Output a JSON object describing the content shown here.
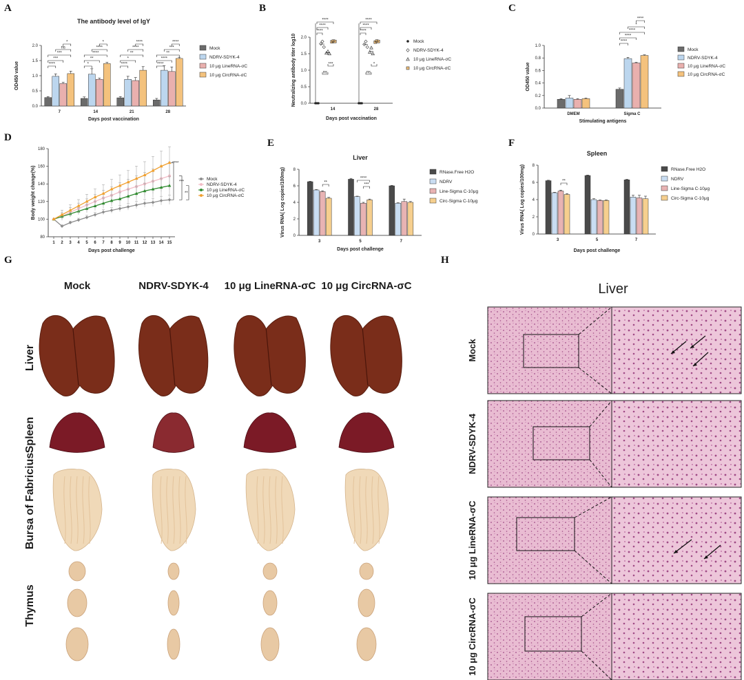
{
  "panel_labels": [
    "A",
    "B",
    "C",
    "D",
    "E",
    "F",
    "G",
    "H"
  ],
  "colors": {
    "mock": "#6b6b6b",
    "ndrv": "#bcd6ee",
    "line": "#e9b0ae",
    "circ": "#f4c27d",
    "d_mock": "#8c8c8c",
    "d_ndrv": "#f2bcc6",
    "d_line": "#2f8a2f",
    "d_circ": "#f0a030",
    "e_h2o": "#4a4a4a",
    "e_ndrv": "#c9ddf2",
    "e_line": "#e8b3b3",
    "e_circ": "#f6cf8e",
    "liver": "#7a2d1a",
    "spleen": "#7b1a26",
    "bursa": "#f0d9b8",
    "thymus": "#e8c9a4",
    "he_bg": "#e9bcd2",
    "he_dot": "#a04a86"
  },
  "chart_data": [
    {
      "id": "A",
      "type": "bar",
      "title": "The antibody level of IgY",
      "xlabel": "Days post vaccination",
      "ylabel": "OD450 value",
      "categories": [
        "7",
        "14",
        "21",
        "28"
      ],
      "ylim": [
        0,
        2.0
      ],
      "yticks": [
        "0.0",
        "0.5",
        "1.0",
        "1.5",
        "2.0"
      ],
      "series": [
        {
          "name": "Mock",
          "values": [
            0.28,
            0.25,
            0.27,
            0.2
          ],
          "err": [
            0.03,
            0.05,
            0.04,
            0.05
          ]
        },
        {
          "name": "NDRV-SDYK-4",
          "values": [
            0.98,
            1.05,
            0.88,
            1.18
          ],
          "err": [
            0.08,
            0.18,
            0.1,
            0.15
          ]
        },
        {
          "name": "10 μg LineRNA-σC",
          "values": [
            0.74,
            0.88,
            0.84,
            1.14
          ],
          "err": [
            0.04,
            0.04,
            0.1,
            0.15
          ]
        },
        {
          "name": "10 μg CircRNA-σC",
          "values": [
            1.07,
            1.4,
            1.18,
            1.57
          ],
          "err": [
            0.08,
            0.04,
            0.12,
            0.04
          ]
        }
      ],
      "significance": [
        "*",
        "ns",
        "***",
        "***",
        "****",
        "*",
        "****",
        "****",
        "**",
        "*",
        "****",
        "****",
        "**",
        "*",
        "****",
        "****",
        "***",
        "**",
        "****",
        "****"
      ]
    },
    {
      "id": "B",
      "type": "scatter",
      "xlabel": "Days post vaccination",
      "ylabel": "Neutralizing antibody titer log10",
      "categories": [
        "14",
        "28"
      ],
      "ylim": [
        0,
        2.0
      ],
      "yticks": [
        "0.0",
        "0.5",
        "1.0",
        "1.5",
        "2.0"
      ],
      "series": [
        {
          "name": "Mock",
          "values": [
            [
              0,
              0,
              0
            ],
            [
              0,
              0,
              0
            ]
          ]
        },
        {
          "name": "NDRV-SDYK-4",
          "values": [
            [
              1.8,
              1.87,
              1.7
            ],
            [
              1.78,
              1.87,
              1.7
            ]
          ]
        },
        {
          "name": "10 μg LineRNA-σC",
          "values": [
            [
              1.52,
              1.57,
              1.5
            ],
            [
              1.55,
              1.68,
              1.5
            ]
          ]
        },
        {
          "name": "10 μg CircRNA-σC",
          "values": [
            [
              1.86,
              1.88,
              1.87
            ],
            [
              1.85,
              1.88,
              1.87
            ]
          ]
        }
      ],
      "significance": [
        "****",
        "****",
        "****",
        "***",
        "ns",
        "****",
        "****",
        "****",
        "*",
        "ns"
      ]
    },
    {
      "id": "C",
      "type": "bar",
      "xlabel": "Stimulating antigens",
      "ylabel": "OD450 value",
      "categories": [
        "DMEM",
        "Sigma C"
      ],
      "ylim": [
        0,
        1.0
      ],
      "yticks": [
        "0.0",
        "0.2",
        "0.4",
        "0.6",
        "0.8",
        "1.0"
      ],
      "series": [
        {
          "name": "Mock",
          "values": [
            0.14,
            0.3
          ],
          "err": [
            0.01,
            0.02
          ]
        },
        {
          "name": "NDRV-SDYK-4",
          "values": [
            0.16,
            0.79
          ],
          "err": [
            0.04,
            0.02
          ]
        },
        {
          "name": "10 μg LineRNA-σC",
          "values": [
            0.14,
            0.72
          ],
          "err": [
            0.01,
            0.01
          ]
        },
        {
          "name": "10 μg CircRNA-σC",
          "values": [
            0.15,
            0.84
          ],
          "err": [
            0.01,
            0.01
          ]
        }
      ],
      "significance": [
        "****",
        "*",
        "****",
        "****",
        "****"
      ]
    },
    {
      "id": "D",
      "type": "line",
      "xlabel": "Days post challenge",
      "ylabel": "Body weight change(%)",
      "x": [
        1,
        2,
        3,
        4,
        5,
        6,
        7,
        8,
        9,
        10,
        11,
        12,
        13,
        14,
        15
      ],
      "ylim": [
        80,
        180
      ],
      "yticks": [
        "80",
        "100",
        "120",
        "140",
        "160",
        "180"
      ],
      "series": [
        {
          "name": "Mock",
          "values": [
            100,
            92,
            96,
            99,
            102,
            105,
            108,
            110,
            112,
            114,
            116,
            118,
            119,
            121,
            122
          ],
          "err": 4
        },
        {
          "name": "NDRV-SDYK-4",
          "values": [
            100,
            103,
            108,
            112,
            116,
            120,
            124,
            127,
            131,
            134,
            137,
            140,
            143,
            146,
            149
          ],
          "err": 12
        },
        {
          "name": "10 μg LineRNA-σC",
          "values": [
            100,
            103,
            106,
            109,
            112,
            115,
            118,
            121,
            123,
            126,
            129,
            132,
            134,
            136,
            138
          ],
          "err": 8
        },
        {
          "name": "10 μg CircRNA-σC",
          "values": [
            100,
            105,
            110,
            115,
            120,
            125,
            129,
            134,
            138,
            142,
            146,
            150,
            155,
            160,
            164
          ],
          "err": 14
        }
      ],
      "significance": [
        "****",
        "***",
        "**"
      ]
    },
    {
      "id": "E",
      "type": "bar",
      "title": "Liver",
      "xlabel": "Days post challenge",
      "ylabel": "Virus RNA( Log copies/100mg)",
      "categories": [
        "3",
        "5",
        "7"
      ],
      "ylim": [
        0,
        8
      ],
      "yticks": [
        "0",
        "2",
        "4",
        "6",
        "8"
      ],
      "series": [
        {
          "name": "RNase.Free H2O",
          "values": [
            6.5,
            6.8,
            6.0
          ],
          "err": [
            0.05,
            0.1,
            0.05
          ]
        },
        {
          "name": "NDRV",
          "values": [
            5.5,
            4.7,
            3.9
          ],
          "err": [
            0.05,
            0.05,
            0.05
          ]
        },
        {
          "name": "Line-Sigma C-10μg",
          "values": [
            5.3,
            3.9,
            4.1
          ],
          "err": [
            0.1,
            0.1,
            0.3
          ]
        },
        {
          "name": "Circ-Sigma C-10μg",
          "values": [
            4.5,
            4.3,
            4.0
          ],
          "err": [
            0.1,
            0.1,
            0.1
          ]
        }
      ],
      "significance": [
        "**",
        "****",
        "***"
      ]
    },
    {
      "id": "F",
      "type": "bar",
      "title": "Spleen",
      "xlabel": "Days post challenge",
      "ylabel": "Virus RNA( Log copies/100mg)",
      "categories": [
        "3",
        "5",
        "7"
      ],
      "ylim": [
        0,
        8
      ],
      "yticks": [
        "0",
        "2",
        "4",
        "6",
        "8"
      ],
      "series": [
        {
          "name": "RNase.Free H2O",
          "values": [
            6.2,
            6.8,
            6.3
          ],
          "err": [
            0.05,
            0.05,
            0.05
          ]
        },
        {
          "name": "NDRV",
          "values": [
            4.8,
            4.0,
            4.3
          ],
          "err": [
            0.05,
            0.1,
            0.2
          ]
        },
        {
          "name": "Line-Sigma C-10μg",
          "values": [
            5.0,
            3.9,
            4.2
          ],
          "err": [
            0.1,
            0.05,
            0.3
          ]
        },
        {
          "name": "Circ-Sigma C-10μg",
          "values": [
            4.6,
            3.9,
            4.1
          ],
          "err": [
            0.1,
            0.05,
            0.3
          ]
        }
      ],
      "significance": [
        "**"
      ]
    }
  ],
  "photos": {
    "columns": [
      "Mock",
      "NDRV-SDYK-4",
      "10 μg LineRNA-σC",
      "10 μg CircRNA-σC"
    ],
    "rows": [
      "Liver",
      "Spleen",
      "Bursa of Fabricius",
      "Thymus"
    ]
  },
  "histology": {
    "title": "Liver",
    "rows": [
      "Mock",
      "NDRV-SDYK-4",
      "10 μg LineRNA-σC",
      "10 μg CircRNA-σC"
    ]
  }
}
